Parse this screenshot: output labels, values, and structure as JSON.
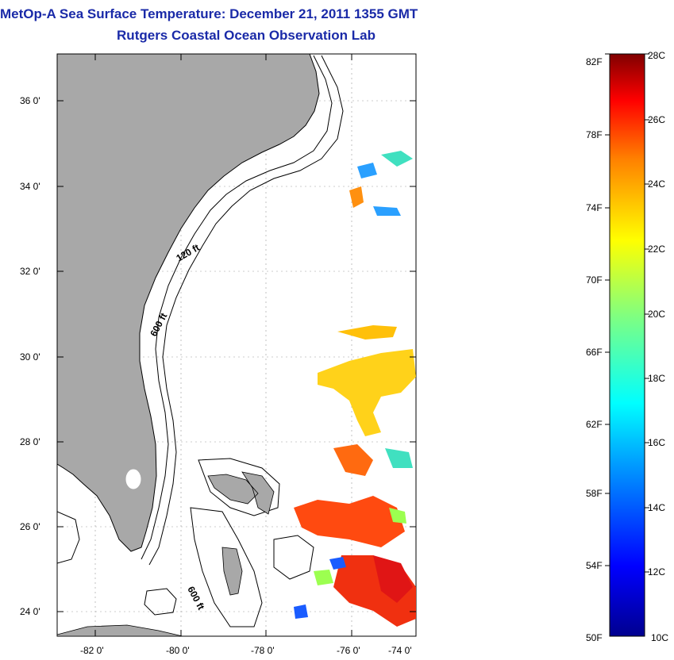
{
  "title": "MetOp-A Sea Surface Temperature:  December 21, 2011 1355 GMT",
  "subtitle": "Rutgers Coastal Ocean Observation Lab",
  "map": {
    "lat_labels": [
      "36 0'",
      "34 0'",
      "32 0'",
      "30 0'",
      "28 0'",
      "26 0'",
      "24 0'"
    ],
    "lon_labels": [
      "-82 0'",
      "-80 0'",
      "-78 0'",
      "-76 0'",
      "-74 0'"
    ],
    "contour_labels": [
      "120 ft",
      "600 ft",
      "600 ft"
    ],
    "colors": {
      "land": "#a8a8a8",
      "ocean": "#ffffff",
      "coast": "#000000"
    }
  },
  "colorbar": {
    "f_labels": [
      "82F",
      "78F",
      "74F",
      "70F",
      "66F",
      "62F",
      "58F",
      "54F",
      "50F"
    ],
    "c_labels": [
      "28C",
      "26C",
      "24C",
      "22C",
      "20C",
      "18C",
      "16C",
      "14C",
      "12C",
      "10C"
    ],
    "range_c": [
      10,
      28
    ]
  }
}
